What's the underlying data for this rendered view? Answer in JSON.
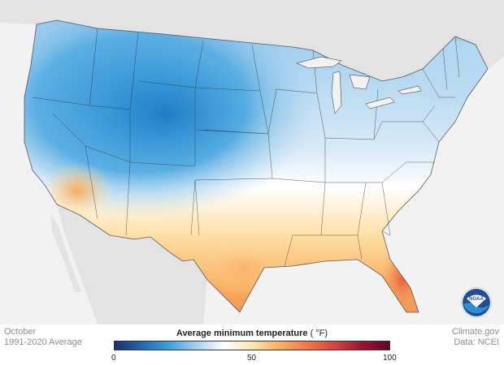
{
  "legend": {
    "title": "Average minimum temperature",
    "unit": "( °F)",
    "min_label": "0",
    "mid_label": "50",
    "max_label": "100",
    "colors": [
      "#1d2e6e",
      "#1f6ab0",
      "#3ea2dc",
      "#a8d2ee",
      "#ffffff",
      "#fde6b0",
      "#f9b061",
      "#f07a4a",
      "#d9433a",
      "#9b1431",
      "#5c0a26"
    ]
  },
  "footer": {
    "month": "October",
    "period": "1991-2020 Average",
    "source": "Climate.gov",
    "data_credit": "Data: NCEI"
  },
  "logo": {
    "text": "NOAA",
    "icon": "noaa-logo-icon"
  },
  "map_colors": {
    "ocean": "#f2f2f2",
    "neighbor_land": "#e3e3e3",
    "border": "#2b2b2b"
  }
}
